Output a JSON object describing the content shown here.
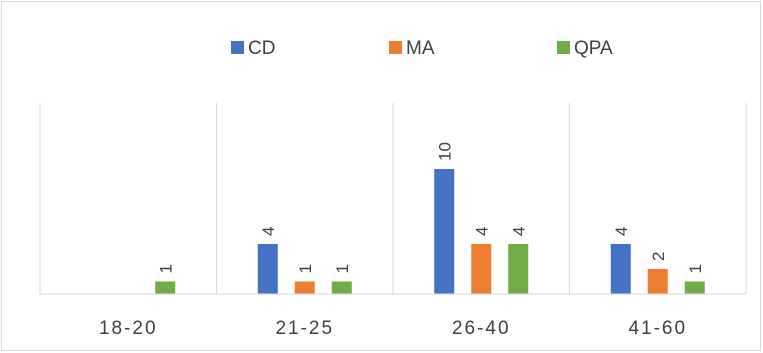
{
  "chart_data": {
    "type": "bar",
    "categories": [
      "18-20",
      "21-25",
      "26-40",
      "41-60"
    ],
    "series": [
      {
        "name": "CD",
        "values": [
          0,
          4,
          10,
          4
        ],
        "color": "#4472c4"
      },
      {
        "name": "MA",
        "values": [
          0,
          1,
          4,
          2
        ],
        "color": "#ed7d31"
      },
      {
        "name": "QPA",
        "values": [
          1,
          1,
          4,
          1
        ],
        "color": "#70ad47"
      }
    ],
    "data_labels": [
      [
        null,
        "4",
        "10",
        "4"
      ],
      [
        null,
        "1",
        "4",
        "2"
      ],
      [
        "1",
        "1",
        "4",
        "1"
      ]
    ],
    "title": "",
    "xlabel": "",
    "ylabel": "",
    "ylim": [
      0,
      12
    ],
    "grid": "vertical category separators",
    "legend_position": "top"
  }
}
